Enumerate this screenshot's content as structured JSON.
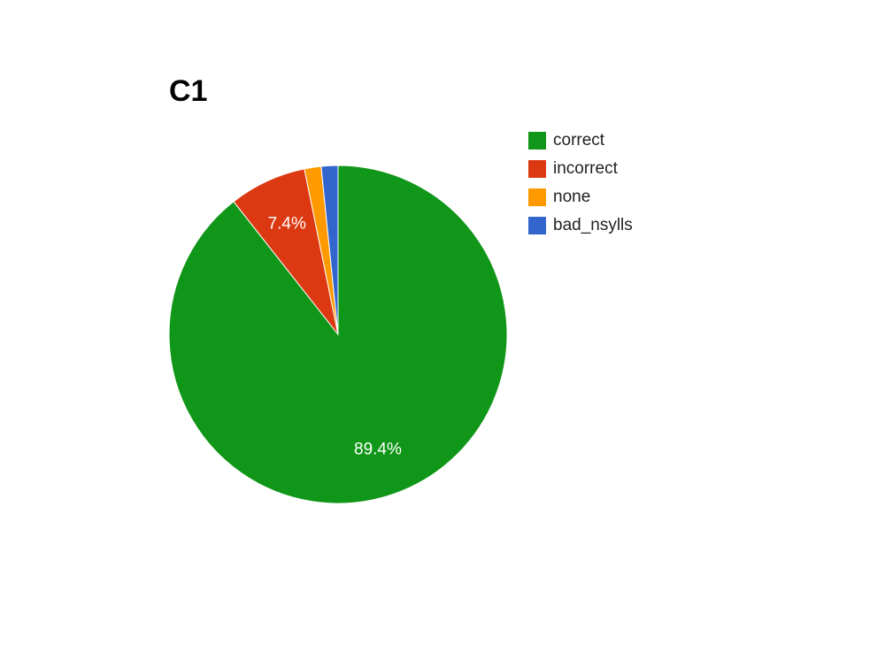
{
  "chart_data": {
    "type": "pie",
    "title": "C1",
    "categories": [
      "correct",
      "incorrect",
      "none",
      "bad_nsylls"
    ],
    "values": [
      89.4,
      7.4,
      1.6,
      1.6
    ],
    "colors": [
      "#109618",
      "#dc3912",
      "#ff9900",
      "#3366cc"
    ],
    "data_labels": [
      "89.4%",
      "7.4%",
      "",
      ""
    ],
    "legend_position": "right"
  }
}
